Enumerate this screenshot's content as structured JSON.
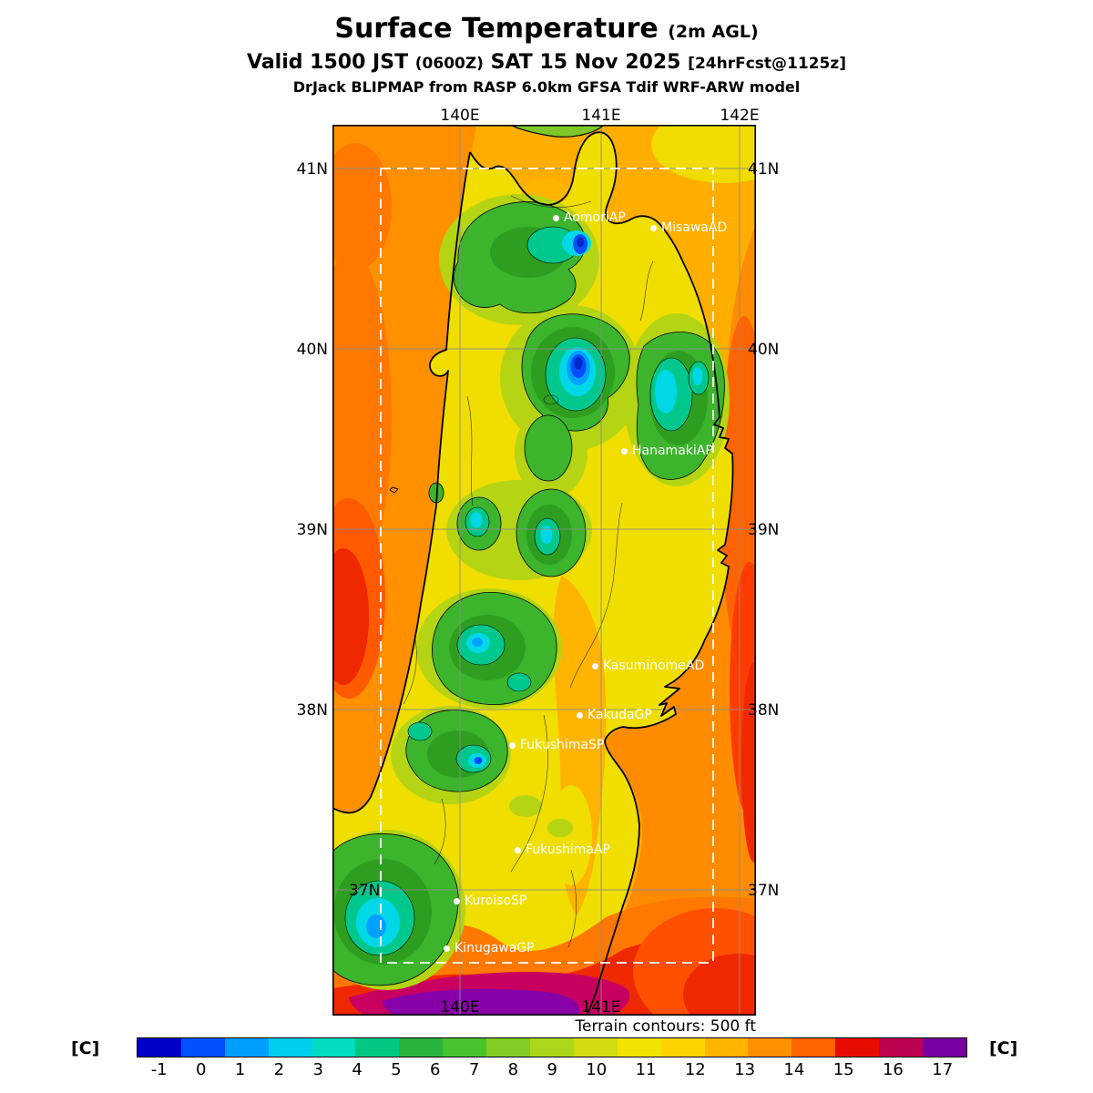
{
  "header": {
    "title": "Surface Temperature",
    "title_suffix": "(2m AGL)",
    "valid_prefix": "Valid 1500 JST",
    "valid_zulu": "(0600Z)",
    "valid_date": "SAT 15 Nov 2025",
    "valid_fcst": "[24hrFcst@1125z]",
    "model_line": "DrJack BLIPMAP from RASP 6.0km GFSA Tdif WRF-ARW model"
  },
  "map": {
    "top_labels": [
      "140E",
      "141E",
      "142E"
    ],
    "bottom_labels": [
      "140E",
      "141E"
    ],
    "left_labels": [
      "41N",
      "40N",
      "39N",
      "38N",
      "37N"
    ],
    "right_labels": [
      "41N",
      "40N",
      "39N",
      "38N",
      "37N"
    ],
    "stations": [
      {
        "name": "AomoriAP"
      },
      {
        "name": "MisawaAD"
      },
      {
        "name": "HanamakiAP"
      },
      {
        "name": "KasuminomeAD"
      },
      {
        "name": "KakudaGP"
      },
      {
        "name": "FukushimaSP"
      },
      {
        "name": "FukushimaAP"
      },
      {
        "name": "KuroisoSP"
      },
      {
        "name": "KinugawaGP"
      }
    ]
  },
  "legend": {
    "terrain_note": "Terrain contours: 500 ft",
    "unit_left": "[C]",
    "unit_right": "[C]",
    "ticks": [
      "-1",
      "0",
      "1",
      "2",
      "3",
      "4",
      "5",
      "6",
      "7",
      "8",
      "9",
      "10",
      "11",
      "12",
      "13",
      "14",
      "15",
      "16",
      "17"
    ],
    "colors": [
      "#0000C8",
      "#0050FF",
      "#009EFF",
      "#00CEF0",
      "#00DCC0",
      "#00C882",
      "#28B43C",
      "#46C32D",
      "#82CD23",
      "#AAD719",
      "#D2DC0F",
      "#F0E400",
      "#FFD200",
      "#FFB400",
      "#FF9100",
      "#FF6400",
      "#E80C00",
      "#BE0050",
      "#7800A0"
    ]
  },
  "chart_data": {
    "type": "heatmap",
    "title": "Surface Temperature (2m AGL)",
    "valid": "Valid 1500 JST (0600Z) SAT 15 Nov 2025",
    "forecast_cycle": "24hrFcst@1125z",
    "model": "DrJack BLIPMAP from RASP 6.0km GFSA Tdif WRF-ARW model",
    "units": "C",
    "scale_values": [
      -1,
      0,
      1,
      2,
      3,
      4,
      5,
      6,
      7,
      8,
      9,
      10,
      11,
      12,
      13,
      14,
      15,
      16,
      17
    ],
    "scale_colors": [
      "#0000C8",
      "#0050FF",
      "#009EFF",
      "#00CEF0",
      "#00DCC0",
      "#00C882",
      "#28B43C",
      "#46C32D",
      "#82CD23",
      "#AAD719",
      "#D2DC0F",
      "#F0E400",
      "#FFD200",
      "#FFB400",
      "#FF9100",
      "#FF6400",
      "#E80C00",
      "#BE0050",
      "#7800A0"
    ],
    "lon_ticks": [
      "140E",
      "141E",
      "142E"
    ],
    "lat_ticks": [
      "41N",
      "40N",
      "39N",
      "38N",
      "37N"
    ],
    "terrain_contours_interval": "500 ft",
    "region_notes": "Cold minima (around -1 to 0 C, blue) over central Tohoku mountains near 40N; warm maxima (16-17 C, magenta/purple) along the southern edge; Sea of Japan and Pacific coasts 11-15 C (orange/red).",
    "stations": [
      "AomoriAP",
      "MisawaAD",
      "HanamakiAP",
      "KasuminomeAD",
      "KakudaGP",
      "FukushimaSP",
      "FukushimaAP",
      "KuroisoSP",
      "KinugawaGP"
    ]
  }
}
